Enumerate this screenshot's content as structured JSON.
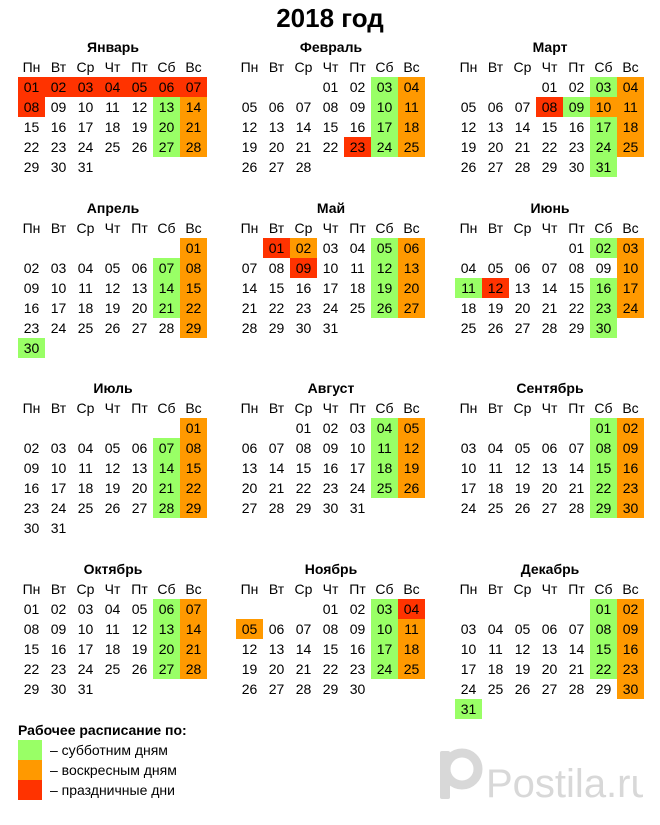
{
  "title": "2018 год",
  "weekdays": [
    "Пн",
    "Вт",
    "Ср",
    "Чт",
    "Пт",
    "Сб",
    "Вс"
  ],
  "months": [
    {
      "name": "Январь",
      "offset": 0,
      "days": 31,
      "sat": [
        13,
        20,
        27
      ],
      "sun": [
        14,
        21,
        28
      ],
      "hol": [
        1,
        2,
        3,
        4,
        5,
        6,
        7,
        8
      ]
    },
    {
      "name": "Февраль",
      "offset": 3,
      "days": 28,
      "sat": [
        3,
        10,
        17,
        24
      ],
      "sun": [
        4,
        11,
        18,
        25
      ],
      "hol": [
        23
      ]
    },
    {
      "name": "Март",
      "offset": 3,
      "days": 31,
      "sat": [
        3,
        9,
        17,
        24,
        31
      ],
      "sun": [
        4,
        11,
        18,
        25
      ],
      "hol": [
        8
      ],
      "sun_extra": [
        10
      ]
    },
    {
      "name": "Апрель",
      "offset": 6,
      "days": 30,
      "sat": [
        7,
        14,
        21,
        30
      ],
      "sun": [
        1,
        8,
        15,
        22,
        29
      ],
      "hol": []
    },
    {
      "name": "Май",
      "offset": 1,
      "days": 31,
      "sat": [
        5,
        12,
        19,
        26
      ],
      "sun": [
        2,
        6,
        13,
        20,
        27
      ],
      "hol": [
        1,
        9
      ]
    },
    {
      "name": "Июнь",
      "offset": 4,
      "days": 30,
      "sat": [
        2,
        11,
        16,
        23,
        30
      ],
      "sun": [
        3,
        10,
        17,
        24
      ],
      "hol": [
        12
      ]
    },
    {
      "name": "Июль",
      "offset": 6,
      "days": 31,
      "sat": [
        7,
        14,
        21,
        28
      ],
      "sun": [
        1,
        8,
        15,
        22,
        29
      ],
      "hol": []
    },
    {
      "name": "Август",
      "offset": 2,
      "days": 31,
      "sat": [
        4,
        11,
        18,
        25
      ],
      "sun": [
        5,
        12,
        19,
        26
      ],
      "hol": []
    },
    {
      "name": "Сентябрь",
      "offset": 5,
      "days": 30,
      "sat": [
        1,
        8,
        15,
        22,
        29
      ],
      "sun": [
        2,
        9,
        16,
        23,
        30
      ],
      "hol": []
    },
    {
      "name": "Октябрь",
      "offset": 0,
      "days": 31,
      "sat": [
        6,
        13,
        20,
        27
      ],
      "sun": [
        7,
        14,
        21,
        28
      ],
      "hol": []
    },
    {
      "name": "Ноябрь",
      "offset": 3,
      "days": 30,
      "sat": [
        3,
        10,
        17,
        24
      ],
      "sun": [
        5,
        11,
        18,
        25
      ],
      "hol": [
        4
      ]
    },
    {
      "name": "Декабрь",
      "offset": 5,
      "days": 31,
      "sat": [
        1,
        8,
        15,
        22,
        31
      ],
      "sun": [
        2,
        9,
        16,
        23,
        30
      ],
      "hol": []
    }
  ],
  "legend": {
    "title": "Рабочее расписание по:",
    "items": [
      {
        "key": "sat",
        "label": "– субботним дням",
        "color": "#99ff66"
      },
      {
        "key": "sun",
        "label": "– воскресным дням",
        "color": "#ff9900"
      },
      {
        "key": "hol",
        "label": "– праздничные дни",
        "color": "#ff3300"
      }
    ]
  },
  "watermark": {
    "text": "Postila.ru",
    "icon": "postila-logo",
    "color": "#d8d8d8"
  }
}
